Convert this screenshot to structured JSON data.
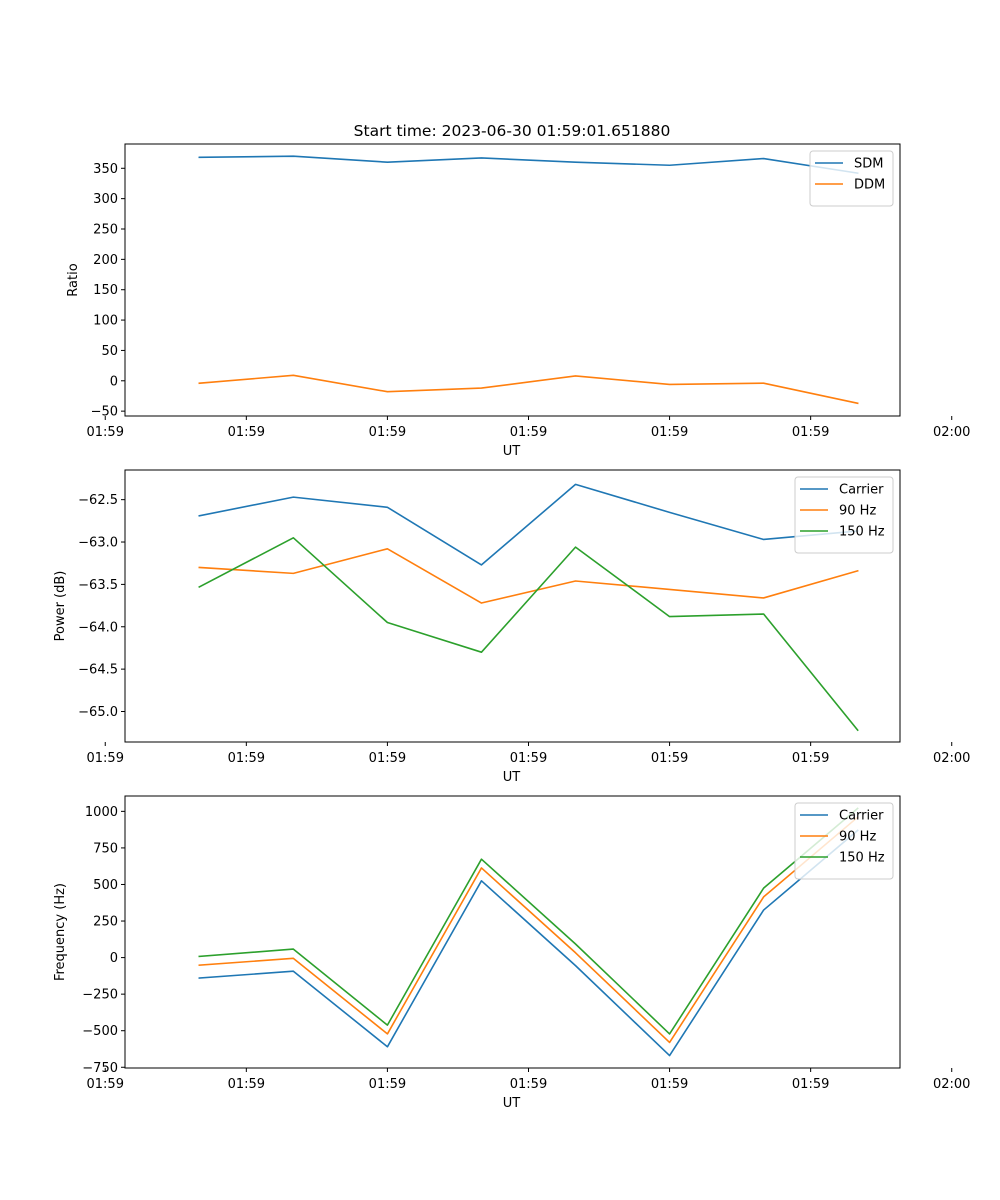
{
  "figure_title": "Start time: 2023-06-30 01:59:01.651880",
  "colors": {
    "blue": "#1f77b4",
    "orange": "#ff7f0e",
    "green": "#2ca02c"
  },
  "chart_data": [
    {
      "type": "line",
      "title": "Start time: 2023-06-30 01:59:01.651880",
      "xlabel": "UT",
      "ylabel": "Ratio",
      "x": [
        1,
        2,
        3,
        4,
        5,
        6,
        7,
        8
      ],
      "xlim": [
        0.21,
        8.45
      ],
      "x_ticks": [
        0,
        1.5,
        3,
        4.5,
        6,
        7.5,
        9
      ],
      "x_tick_labels": [
        "01:59",
        "01:59",
        "01:59",
        "01:59",
        "01:59",
        "01:59",
        "02:00"
      ],
      "ylim": [
        -58,
        390
      ],
      "y_ticks": [
        -50,
        0,
        50,
        100,
        150,
        200,
        250,
        300,
        350
      ],
      "y_tick_labels": [
        "−50",
        "0",
        "50",
        "100",
        "150",
        "200",
        "250",
        "300",
        "350"
      ],
      "legend": "top-right",
      "series": [
        {
          "name": "SDM",
          "color": "#1f77b4",
          "values": [
            368,
            370,
            360,
            367,
            360,
            355,
            366,
            342
          ]
        },
        {
          "name": "DDM",
          "color": "#ff7f0e",
          "values": [
            -4,
            9,
            -18,
            -12,
            8,
            -6,
            -4,
            -37
          ]
        }
      ]
    },
    {
      "type": "line",
      "xlabel": "UT",
      "ylabel": "Power (dB)",
      "x": [
        1,
        2,
        3,
        4,
        5,
        6,
        7,
        8
      ],
      "xlim": [
        0.21,
        8.45
      ],
      "x_ticks": [
        0,
        1.5,
        3,
        4.5,
        6,
        7.5,
        9
      ],
      "x_tick_labels": [
        "01:59",
        "01:59",
        "01:59",
        "01:59",
        "01:59",
        "01:59",
        "02:00"
      ],
      "ylim": [
        -65.36,
        -62.15
      ],
      "y_ticks": [
        -65.0,
        -64.5,
        -64.0,
        -63.5,
        -63.0,
        -62.5
      ],
      "y_tick_labels": [
        "−65.0",
        "−64.5",
        "−64.0",
        "−63.5",
        "−63.0",
        "−62.5"
      ],
      "legend": "top-right",
      "series": [
        {
          "name": "Carrier",
          "color": "#1f77b4",
          "values": [
            -62.69,
            -62.47,
            -62.59,
            -63.27,
            -62.32,
            -62.65,
            -62.97,
            -62.87
          ]
        },
        {
          "name": "90 Hz",
          "color": "#ff7f0e",
          "values": [
            -63.3,
            -63.37,
            -63.08,
            -63.72,
            -63.46,
            -63.56,
            -63.66,
            -63.34
          ]
        },
        {
          "name": "150 Hz",
          "color": "#2ca02c",
          "values": [
            -63.53,
            -62.95,
            -63.95,
            -64.3,
            -63.06,
            -63.88,
            -63.85,
            -65.22
          ]
        }
      ]
    },
    {
      "type": "line",
      "xlabel": "UT",
      "ylabel": "Frequency (Hz)",
      "x": [
        1,
        2,
        3,
        4,
        5,
        6,
        7,
        8
      ],
      "xlim": [
        0.21,
        8.45
      ],
      "x_ticks": [
        0,
        1.5,
        3,
        4.5,
        6,
        7.5,
        9
      ],
      "x_tick_labels": [
        "01:59",
        "01:59",
        "01:59",
        "01:59",
        "01:59",
        "01:59",
        "02:00"
      ],
      "ylim": [
        -755,
        1105
      ],
      "y_ticks": [
        -750,
        -500,
        -250,
        0,
        250,
        500,
        750,
        1000
      ],
      "y_tick_labels": [
        "−750",
        "−500",
        "−250",
        "0",
        "250",
        "500",
        "750",
        "1000"
      ],
      "legend": "top-right",
      "series": [
        {
          "name": "Carrier",
          "color": "#1f77b4",
          "values": [
            -140,
            -93,
            -610,
            525,
            -55,
            -670,
            325,
            870
          ]
        },
        {
          "name": "90 Hz",
          "color": "#ff7f0e",
          "values": [
            -52,
            -5,
            -522,
            613,
            33,
            -580,
            415,
            960
          ]
        },
        {
          "name": "150 Hz",
          "color": "#2ca02c",
          "values": [
            8,
            58,
            -462,
            673,
            93,
            -522,
            475,
            1020
          ]
        }
      ]
    }
  ]
}
